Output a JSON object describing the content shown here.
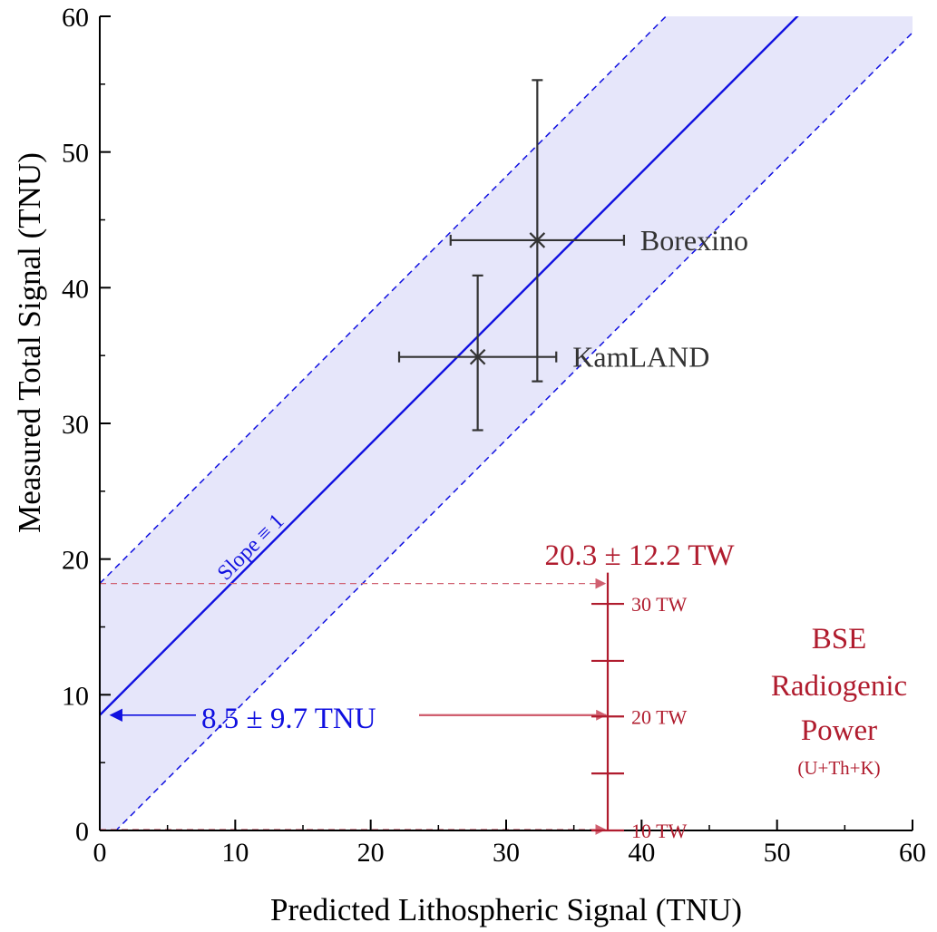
{
  "colors": {
    "fit": "#1010e0",
    "band": "#e6e6fa",
    "power": "#b01c2e",
    "power_light": "#d06070",
    "data": "#333333",
    "axis": "#000000"
  },
  "chart_data": {
    "type": "scatter",
    "title": "",
    "xlabel": "Predicted Lithospheric Signal (TNU)",
    "ylabel": "Measured Total Signal (TNU)",
    "xlim": [
      0,
      60
    ],
    "ylim": [
      0,
      60
    ],
    "x_ticks": [
      0,
      10,
      20,
      30,
      40,
      50,
      60
    ],
    "y_ticks": [
      0,
      10,
      20,
      30,
      40,
      50,
      60
    ],
    "grid": false,
    "points": [
      {
        "name": "Borexino",
        "x": 32.3,
        "y": 43.5,
        "x_err": 6.4,
        "y_err_low": 10.4,
        "y_err_high": 11.8
      },
      {
        "name": "KamLAND",
        "x": 27.9,
        "y": 34.9,
        "x_err": 5.8,
        "y_err_low": 5.4,
        "y_err_high": 6.0
      }
    ],
    "fit": {
      "label": "Slope ≡ 1",
      "slope": 1,
      "intercept": 8.5,
      "intercept_err": 9.7,
      "intercept_label": "8.5 ± 9.7 TNU"
    },
    "power_scale": {
      "title": "BSE",
      "title_line2": "Radiogenic",
      "title_line3": "Power",
      "subtitle": "(U+Th+K)",
      "result_label": "20.3 ± 12.2 TW",
      "x_position": 37.5,
      "y_range": [
        0,
        19
      ],
      "ticks": [
        {
          "label": "30 TW",
          "y": 16.7
        },
        {
          "label": "",
          "y": 12.5
        },
        {
          "label": "20 TW",
          "y": 8.4
        },
        {
          "label": "",
          "y": 4.2
        },
        {
          "label": "10 TW",
          "y": 0
        }
      ],
      "upper_y": 18.2,
      "lower_y": 0
    }
  }
}
